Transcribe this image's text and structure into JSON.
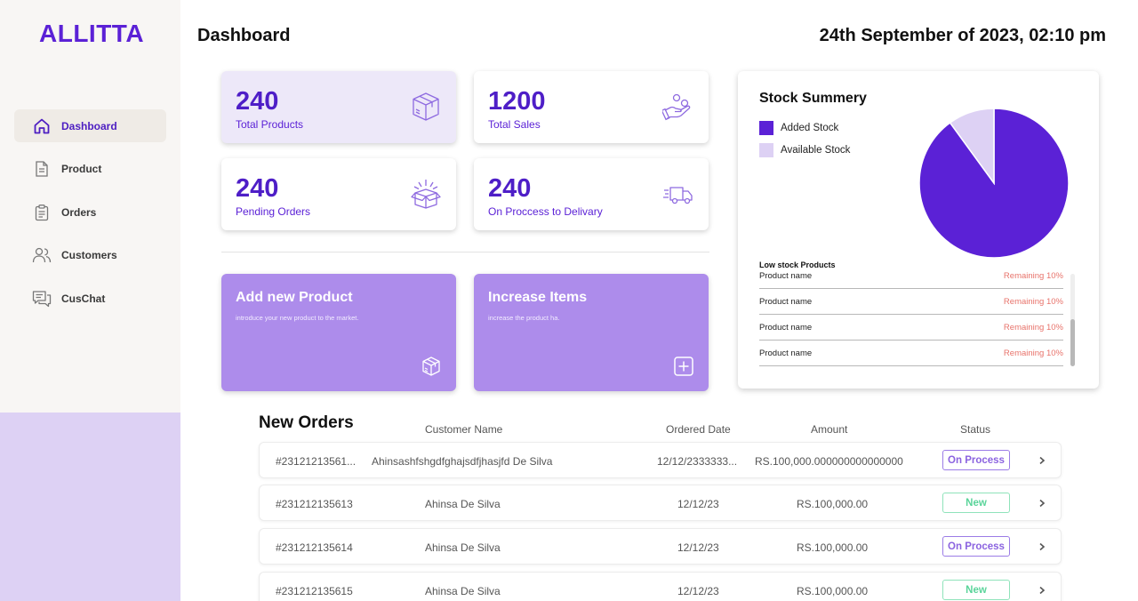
{
  "app": {
    "logo": "ALLITTA"
  },
  "sidebar": {
    "items": [
      {
        "label": "Dashboard",
        "icon": "home-icon",
        "active": true
      },
      {
        "label": "Product",
        "icon": "document-icon"
      },
      {
        "label": "Orders",
        "icon": "clipboard-icon"
      },
      {
        "label": "Customers",
        "icon": "users-icon"
      },
      {
        "label": "CusChat",
        "icon": "chat-icon"
      }
    ]
  },
  "header": {
    "title": "Dashboard",
    "datetime": "24th September of 2023, 02:10 pm"
  },
  "stats": [
    {
      "value": "240",
      "label": "Total Products",
      "icon": "box-icon"
    },
    {
      "value": "1200",
      "label": "Total Sales",
      "icon": "hand-money-icon"
    },
    {
      "value": "240",
      "label": "Pending Orders",
      "icon": "open-box-icon"
    },
    {
      "value": "240",
      "label": "On Proccess to Delivary",
      "icon": "truck-icon"
    }
  ],
  "actions": [
    {
      "title": "Add new Product",
      "subtitle": "introduce your new product to the market.",
      "icon": "box-icon"
    },
    {
      "title": "Increase Items",
      "subtitle": "increase the product ha.",
      "icon": "plus-square-icon"
    }
  ],
  "stock": {
    "title": "Stock Summery",
    "legend": [
      {
        "label": "Added Stock",
        "color": "#5b21d6"
      },
      {
        "label": "Available Stock",
        "color": "#ddd1f4"
      }
    ],
    "low_title": "Low stock Products",
    "low_items": [
      {
        "name": "Product name",
        "remaining": "Remaining 10%"
      },
      {
        "name": "Product name",
        "remaining": "Remaining 10%"
      },
      {
        "name": "Product name",
        "remaining": "Remaining 10%"
      },
      {
        "name": "Product name",
        "remaining": "Remaining 10%"
      }
    ]
  },
  "chart_data": {
    "type": "pie",
    "title": "Stock Summery",
    "series": [
      {
        "name": "Added Stock",
        "value": 90,
        "color": "#5b21d6"
      },
      {
        "name": "Available Stock",
        "value": 10,
        "color": "#ddd1f4"
      }
    ],
    "legend": "top-left"
  },
  "orders": {
    "title": "New Orders",
    "columns": [
      "Customer Name",
      "Ordered Date",
      "Amount",
      "Status"
    ],
    "rows": [
      {
        "id": "#23121213561...",
        "customer": "Ahinsashfshgdfghajsdfjhasjfd De Silva",
        "date": "12/12/2333333...",
        "amount": "RS.100,000.000000000000000",
        "status": "On Process",
        "status_type": "proc"
      },
      {
        "id": "#231212135613",
        "customer": "Ahinsa De Silva",
        "date": "12/12/23",
        "amount": "RS.100,000.00",
        "status": "New",
        "status_type": "new"
      },
      {
        "id": "#231212135614",
        "customer": "Ahinsa De Silva",
        "date": "12/12/23",
        "amount": "RS.100,000.00",
        "status": "On Process",
        "status_type": "proc"
      },
      {
        "id": "#231212135615",
        "customer": "Ahinsa De Silva",
        "date": "12/12/23",
        "amount": "RS.100,000.00",
        "status": "New",
        "status_type": "new"
      }
    ]
  }
}
